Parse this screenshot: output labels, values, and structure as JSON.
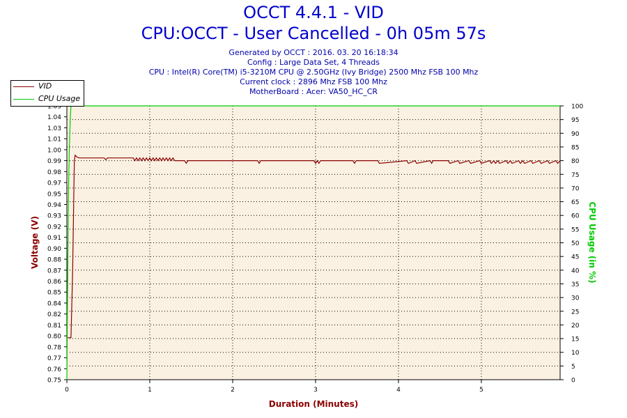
{
  "header": {
    "title": "OCCT 4.4.1 - VID",
    "subtitle": "CPU:OCCT - User Cancelled - 0h 05m 57s",
    "info_lines": [
      "Generated by OCCT : 2016. 03. 20 16:18:34",
      "Config : Large Data Set, 4 Threads",
      "CPU : Intel(R) Core(TM) i5-3210M CPU @ 2.50GHz (Ivy Bridge) 2500 Mhz FSB 100 Mhz",
      "Current clock : 2896 Mhz FSB 100 Mhz",
      "MotherBoard : Acer: VA50_HC_CR"
    ]
  },
  "colors": {
    "vid": "#8b0000",
    "cpu": "#00cc00",
    "plot_bg": "#fbf1e2",
    "title": "#0000cc",
    "axis_label_x": "#8b0000"
  },
  "chart_data": {
    "type": "line",
    "xlabel": "Duration (Minutes)",
    "ylabel_left": "Voltage (V)",
    "ylabel_right": "CPU Usage (in %)",
    "xlim": [
      0,
      5.95
    ],
    "ylim_left": [
      0.75,
      1.05
    ],
    "ylim_right": [
      0,
      100
    ],
    "x_ticks": [
      0,
      1,
      2,
      3,
      4,
      5
    ],
    "y_ticks_left": [
      "0.75",
      "0.76",
      "0.77",
      "0.78",
      "0.80",
      "0.81",
      "0.82",
      "0.84",
      "0.85",
      "0.86",
      "0.87",
      "0.88",
      "0.90",
      "0.91",
      "0.92",
      "0.93",
      "0.94",
      "0.95",
      "0.97",
      "0.98",
      "0.99",
      "1.00",
      "1.01",
      "1.03",
      "1.04",
      "1.05"
    ],
    "y_ticks_right": [
      0,
      5,
      10,
      15,
      20,
      25,
      30,
      35,
      40,
      45,
      50,
      55,
      60,
      65,
      70,
      75,
      80,
      85,
      90,
      95,
      100
    ],
    "grid": true,
    "legend_position": "top-left",
    "series": [
      {
        "name": "VID",
        "axis": "left",
        "x": [
          0,
          0.02,
          0.05,
          0.07,
          0.09,
          0.1,
          0.12,
          0.15,
          0.45,
          0.47,
          0.49,
          0.8,
          0.82,
          0.84,
          0.86,
          0.88,
          0.9,
          0.92,
          0.94,
          0.96,
          0.98,
          1.0,
          1.02,
          1.04,
          1.06,
          1.08,
          1.1,
          1.12,
          1.14,
          1.16,
          1.18,
          1.2,
          1.22,
          1.24,
          1.26,
          1.28,
          1.3,
          1.42,
          1.44,
          1.46,
          2.3,
          2.32,
          2.34,
          2.98,
          3.0,
          3.02,
          3.04,
          3.06,
          3.45,
          3.47,
          3.49,
          3.75,
          3.77,
          4.1,
          4.12,
          4.2,
          4.22,
          4.38,
          4.4,
          4.42,
          4.6,
          4.62,
          4.72,
          4.74,
          4.85,
          4.87,
          4.98,
          5.0,
          5.1,
          5.12,
          5.15,
          5.17,
          5.2,
          5.22,
          5.3,
          5.32,
          5.35,
          5.37,
          5.45,
          5.47,
          5.5,
          5.52,
          5.6,
          5.62,
          5.7,
          5.72,
          5.8,
          5.82,
          5.9,
          5.92,
          5.95
        ],
        "values": [
          0.796,
          0.796,
          0.796,
          0.87,
          0.99,
          0.996,
          0.994,
          0.993,
          0.993,
          0.991,
          0.993,
          0.993,
          0.99,
          0.993,
          0.99,
          0.993,
          0.99,
          0.993,
          0.99,
          0.993,
          0.99,
          0.993,
          0.99,
          0.993,
          0.99,
          0.993,
          0.99,
          0.993,
          0.99,
          0.993,
          0.99,
          0.993,
          0.99,
          0.993,
          0.99,
          0.993,
          0.99,
          0.99,
          0.987,
          0.99,
          0.99,
          0.987,
          0.99,
          0.99,
          0.987,
          0.99,
          0.987,
          0.99,
          0.99,
          0.987,
          0.99,
          0.99,
          0.987,
          0.99,
          0.987,
          0.99,
          0.987,
          0.99,
          0.987,
          0.99,
          0.99,
          0.987,
          0.99,
          0.987,
          0.99,
          0.987,
          0.99,
          0.987,
          0.99,
          0.987,
          0.99,
          0.987,
          0.99,
          0.987,
          0.99,
          0.987,
          0.99,
          0.987,
          0.99,
          0.987,
          0.99,
          0.987,
          0.99,
          0.987,
          0.99,
          0.987,
          0.99,
          0.987,
          0.99,
          0.987,
          0.99
        ]
      },
      {
        "name": "CPU Usage",
        "axis": "right",
        "x": [
          0,
          0.01,
          0.02,
          0.03,
          0.04,
          0.05,
          5.95
        ],
        "values": [
          0,
          40,
          70,
          85,
          95,
          100,
          100
        ]
      }
    ]
  }
}
